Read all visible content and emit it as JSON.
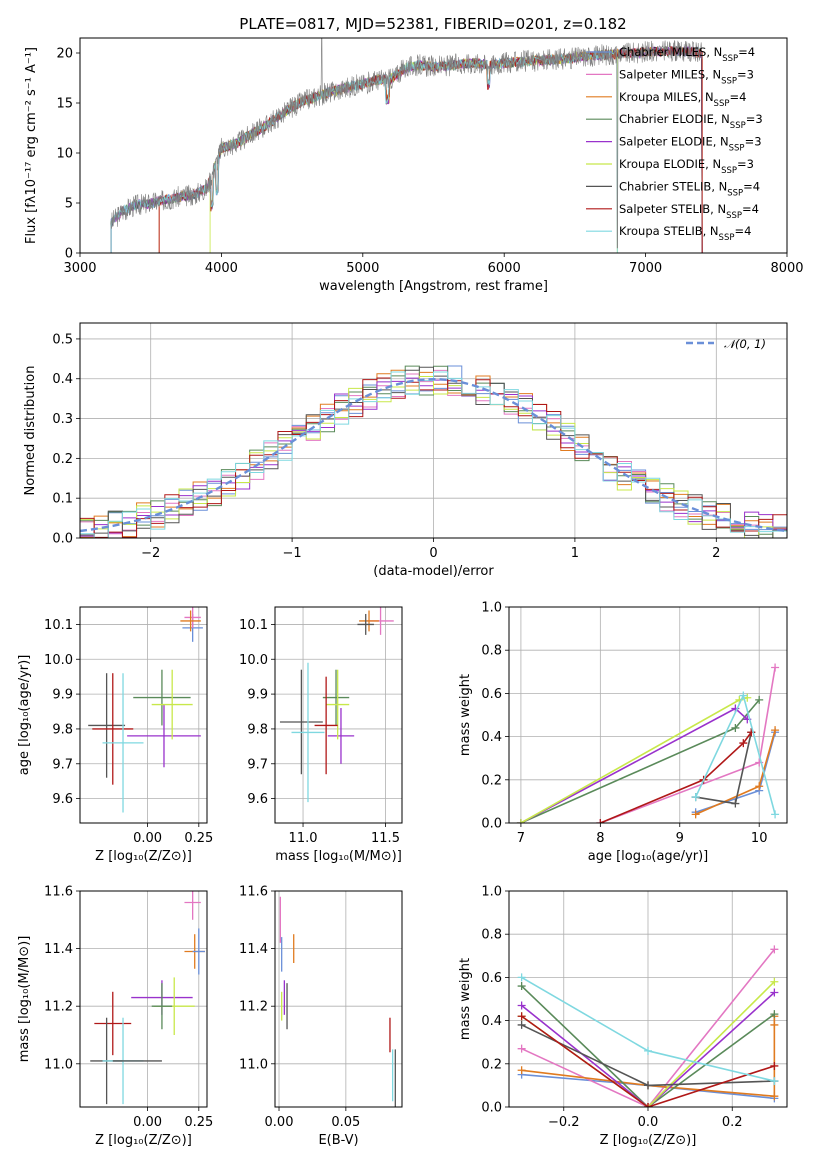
{
  "figure_title": "PLATE=0817, MJD=52381, FIBERID=0201, z=0.182",
  "colors": {
    "chabrier_miles": "#6a8fd8",
    "salpeter_miles": "#e377c2",
    "kroupa_miles": "#e07b20",
    "chabrier_elodie": "#5a8a5a",
    "salpeter_elodie": "#9932cc",
    "kroupa_elodie": "#c8e84a",
    "chabrier_stelib": "#555555",
    "salpeter_stelib": "#b01818",
    "kroupa_stelib": "#7fd8e0",
    "grid": "#b0b0b0"
  },
  "chart_data": [
    {
      "id": "spectrum",
      "type": "line",
      "title": "PLATE=0817, MJD=52381, FIBERID=0201, z=0.182",
      "xlabel": "wavelength [Angstrom, rest frame]",
      "ylabel": "Flux [fλ10⁻¹⁷ erg cm⁻² s⁻¹ A⁻¹]",
      "xlim": [
        3000,
        8000
      ],
      "ylim": [
        0,
        21.5
      ],
      "xticks": [
        3000,
        4000,
        5000,
        6000,
        7000,
        8000
      ],
      "yticks": [
        0,
        5,
        10,
        15,
        20
      ],
      "grid": false,
      "legend": "upper right",
      "legend_entries": [
        {
          "label": "Chabrier MILES, N",
          "sub": "SSP",
          "tail": "=4",
          "color": "#6a8fd8"
        },
        {
          "label": "Salpeter MILES, N",
          "sub": "SSP",
          "tail": "=3",
          "color": "#e377c2"
        },
        {
          "label": "Kroupa MILES, N",
          "sub": "SSP",
          "tail": "=4",
          "color": "#e07b20"
        },
        {
          "label": "Chabrier ELODIE, N",
          "sub": "SSP",
          "tail": "=3",
          "color": "#5a8a5a"
        },
        {
          "label": "Salpeter ELODIE, N",
          "sub": "SSP",
          "tail": "=3",
          "color": "#9932cc"
        },
        {
          "label": "Kroupa ELODIE, N",
          "sub": "SSP",
          "tail": "=3",
          "color": "#c8e84a"
        },
        {
          "label": "Chabrier STELIB, N",
          "sub": "SSP",
          "tail": "=4",
          "color": "#555555"
        },
        {
          "label": "Salpeter STELIB, N",
          "sub": "SSP",
          "tail": "=4",
          "color": "#b01818"
        },
        {
          "label": "Kroupa STELIB, N",
          "sub": "SSP",
          "tail": "=4",
          "color": "#7fd8e0"
        }
      ],
      "continuum": {
        "x": [
          3220,
          3300,
          3400,
          3500,
          3600,
          3700,
          3800,
          3900,
          3950,
          4000,
          4100,
          4200,
          4300,
          4400,
          4500,
          4600,
          4700,
          4800,
          4900,
          5000,
          5100,
          5200,
          5300,
          5400,
          5500,
          5600,
          5700,
          5800,
          5900,
          6000,
          6200,
          6400,
          6600,
          6800,
          7000,
          7200,
          7400
        ],
        "y": [
          3.0,
          4.2,
          4.8,
          5.0,
          5.3,
          5.6,
          5.8,
          6.5,
          8.5,
          10.5,
          10.9,
          11.8,
          12.6,
          13.6,
          14.6,
          15.3,
          15.8,
          16.2,
          16.6,
          16.9,
          17.3,
          17.4,
          18.5,
          18.8,
          18.6,
          18.7,
          18.9,
          19.0,
          18.8,
          19.0,
          19.2,
          19.4,
          19.7,
          19.9,
          20.1,
          20.2,
          20.0
        ]
      },
      "model_starts": [
        3220,
        3220,
        3560,
        3220,
        3220,
        3920,
        3220,
        3560,
        3220
      ],
      "model_ends": [
        7400,
        7400,
        7400,
        7400,
        7400,
        6800,
        7400,
        7400,
        6800
      ]
    },
    {
      "id": "residuals",
      "type": "histogram",
      "xlabel": "(data-model)/error",
      "ylabel": "Normed distribution",
      "xlim": [
        -2.5,
        2.5
      ],
      "ylim": [
        0,
        0.54
      ],
      "xticks": [
        -2,
        -1,
        0,
        1,
        2
      ],
      "yticks": [
        0.0,
        0.1,
        0.2,
        0.3,
        0.4,
        0.5
      ],
      "grid": true,
      "legend": "upper right",
      "legend_label": "𝒩(0, 1)",
      "gaussian_color": "#6a8fd8"
    },
    {
      "id": "age_vs_Z",
      "type": "errorbar",
      "xlabel": "Z [log₁₀(Z/Z⊙)]",
      "ylabel": "age  [log₁₀(age/yr)]",
      "xlim": [
        -0.33,
        0.29
      ],
      "ylim": [
        9.53,
        10.15
      ],
      "xticks": [
        0.0,
        0.25
      ],
      "xticklabels": [
        "0.00",
        "0.25"
      ],
      "yticks": [
        9.6,
        9.7,
        9.8,
        9.9,
        10.0,
        10.1
      ],
      "grid": true,
      "points": [
        {
          "x": 0.22,
          "y": 10.09,
          "xe": 0.05,
          "ye": 0.04,
          "color": "#6a8fd8"
        },
        {
          "x": 0.22,
          "y": 10.12,
          "xe": 0.04,
          "ye": 0.03,
          "color": "#e377c2"
        },
        {
          "x": 0.21,
          "y": 10.11,
          "xe": 0.05,
          "ye": 0.03,
          "color": "#e07b20"
        },
        {
          "x": 0.07,
          "y": 9.89,
          "xe": 0.14,
          "ye": 0.08,
          "color": "#5a8a5a"
        },
        {
          "x": 0.08,
          "y": 9.78,
          "xe": 0.18,
          "ye": 0.09,
          "color": "#9932cc"
        },
        {
          "x": 0.12,
          "y": 9.87,
          "xe": 0.1,
          "ye": 0.1,
          "color": "#c8e84a"
        },
        {
          "x": -0.2,
          "y": 9.81,
          "xe": 0.09,
          "ye": 0.15,
          "color": "#555555"
        },
        {
          "x": -0.17,
          "y": 9.8,
          "xe": 0.1,
          "ye": 0.16,
          "color": "#b01818"
        },
        {
          "x": -0.12,
          "y": 9.76,
          "xe": 0.1,
          "ye": 0.2,
          "color": "#7fd8e0"
        }
      ]
    },
    {
      "id": "age_vs_mass",
      "type": "errorbar",
      "xlabel": "mass [log₁₀(M/M⊙)]",
      "ylabel": "",
      "xlim": [
        10.83,
        11.6
      ],
      "ylim": [
        9.53,
        10.15
      ],
      "xticks": [
        11.0,
        11.5
      ],
      "xticklabels": [
        "11.0",
        "11.5"
      ],
      "yticks": [
        9.6,
        9.7,
        9.8,
        9.9,
        10.0,
        10.1
      ],
      "grid": true,
      "points": [
        {
          "x": 11.47,
          "y": 10.11,
          "xe": 0.08,
          "ye": 0.04,
          "color": "#e377c2"
        },
        {
          "x": 11.4,
          "y": 10.11,
          "xe": 0.06,
          "ye": 0.03,
          "color": "#e07b20"
        },
        {
          "x": 11.38,
          "y": 10.1,
          "xe": 0.05,
          "ye": 0.03,
          "color": "#555555"
        },
        {
          "x": 11.2,
          "y": 9.89,
          "xe": 0.08,
          "ye": 0.08,
          "color": "#5a8a5a"
        },
        {
          "x": 11.23,
          "y": 9.78,
          "xe": 0.08,
          "ye": 0.08,
          "color": "#9932cc"
        },
        {
          "x": 11.21,
          "y": 9.87,
          "xe": 0.07,
          "ye": 0.1,
          "color": "#c8e84a"
        },
        {
          "x": 10.99,
          "y": 9.82,
          "xe": 0.13,
          "ye": 0.15,
          "color": "#555555"
        },
        {
          "x": 11.14,
          "y": 9.81,
          "xe": 0.07,
          "ye": 0.14,
          "color": "#b01818"
        },
        {
          "x": 11.03,
          "y": 9.79,
          "xe": 0.1,
          "ye": 0.2,
          "color": "#7fd8e0"
        }
      ]
    },
    {
      "id": "mass_weight_vs_age",
      "type": "line",
      "xlabel": "age  [log₁₀(age/yr)]",
      "ylabel": "mass weight",
      "xlim": [
        6.85,
        10.35
      ],
      "ylim": [
        0,
        1.0
      ],
      "xticks": [
        7,
        8,
        9,
        10
      ],
      "yticks": [
        0.0,
        0.2,
        0.4,
        0.6,
        0.8,
        1.0
      ],
      "grid": true,
      "series": [
        {
          "color": "#6a8fd8",
          "x": [
            9.2,
            10.0,
            10.2
          ],
          "y": [
            0.05,
            0.15,
            0.42
          ]
        },
        {
          "color": "#e377c2",
          "x": [
            8.0,
            10.0,
            10.2
          ],
          "y": [
            0.0,
            0.28,
            0.72
          ]
        },
        {
          "color": "#e07b20",
          "x": [
            9.2,
            10.0,
            10.2
          ],
          "y": [
            0.04,
            0.17,
            0.43
          ]
        },
        {
          "color": "#5a8a5a",
          "x": [
            7.0,
            9.7,
            10.0
          ],
          "y": [
            0.0,
            0.44,
            0.57
          ]
        },
        {
          "color": "#9932cc",
          "x": [
            7.0,
            9.7,
            9.85
          ],
          "y": [
            0.0,
            0.53,
            0.48
          ]
        },
        {
          "color": "#c8e84a",
          "x": [
            7.0,
            9.75,
            9.85
          ],
          "y": [
            0.0,
            0.57,
            0.58
          ]
        },
        {
          "color": "#555555",
          "x": [
            9.2,
            9.7,
            9.9
          ],
          "y": [
            0.12,
            0.09,
            0.42
          ]
        },
        {
          "color": "#b01818",
          "x": [
            8.0,
            9.3,
            9.8,
            9.9
          ],
          "y": [
            0.0,
            0.2,
            0.37,
            0.42
          ]
        },
        {
          "color": "#7fd8e0",
          "x": [
            9.2,
            9.8,
            10.2
          ],
          "y": [
            0.12,
            0.59,
            0.04
          ]
        }
      ]
    },
    {
      "id": "mass_vs_Z",
      "type": "errorbar",
      "xlabel": "Z [log₁₀(Z/Z⊙)]",
      "ylabel": "mass [log₁₀(M/M⊙)]",
      "xlim": [
        -0.33,
        0.29
      ],
      "ylim": [
        10.85,
        11.6
      ],
      "xticks": [
        0.0,
        0.25
      ],
      "xticklabels": [
        "0.00",
        "0.25"
      ],
      "yticks": [
        11.0,
        11.2,
        11.4,
        11.6
      ],
      "grid": true,
      "points": [
        {
          "x": 0.22,
          "y": 11.56,
          "xe": 0.04,
          "ye": 0.06,
          "color": "#e377c2"
        },
        {
          "x": 0.23,
          "y": 11.39,
          "xe": 0.05,
          "ye": 0.06,
          "color": "#e07b20"
        },
        {
          "x": 0.25,
          "y": 11.39,
          "xe": 0.03,
          "ye": 0.08,
          "color": "#6a8fd8"
        },
        {
          "x": 0.07,
          "y": 11.23,
          "xe": 0.15,
          "ye": 0.06,
          "color": "#9932cc"
        },
        {
          "x": 0.13,
          "y": 11.2,
          "xe": 0.1,
          "ye": 0.1,
          "color": "#c8e84a"
        },
        {
          "x": 0.07,
          "y": 11.2,
          "xe": 0.05,
          "ye": 0.08,
          "color": "#5a8a5a"
        },
        {
          "x": -0.17,
          "y": 11.14,
          "xe": 0.09,
          "ye": 0.11,
          "color": "#b01818"
        },
        {
          "x": -0.2,
          "y": 11.01,
          "xe": 0.08,
          "ye": 0.15,
          "color": "#555555"
        },
        {
          "x": -0.12,
          "y": 11.01,
          "xe": 0.1,
          "ye": 0.15,
          "color": "#7fd8e0"
        },
        {
          "x": -0.05,
          "y": 11.01,
          "xe": 0.12,
          "ye": 0.0,
          "color": "#555555"
        }
      ]
    },
    {
      "id": "mass_vs_EBV",
      "type": "errorbar",
      "xlabel": "E(B-V)",
      "ylabel": "",
      "xlim": [
        -0.003,
        0.092
      ],
      "ylim": [
        10.85,
        11.6
      ],
      "xticks": [
        0.0,
        0.05
      ],
      "xticklabels": [
        "0.00",
        "0.05"
      ],
      "yticks": [
        11.0,
        11.2,
        11.4,
        11.6
      ],
      "grid": true,
      "points": [
        {
          "x": 0.001,
          "y": 11.5,
          "xe": 0,
          "ye": 0.08,
          "color": "#e377c2"
        },
        {
          "x": 0.002,
          "y": 11.38,
          "xe": 0,
          "ye": 0.06,
          "color": "#6a8fd8"
        },
        {
          "x": 0.002,
          "y": 11.2,
          "xe": 0,
          "ye": 0.05,
          "color": "#c8e84a"
        },
        {
          "x": 0.004,
          "y": 11.23,
          "xe": 0,
          "ye": 0.06,
          "color": "#9932cc"
        },
        {
          "x": 0.006,
          "y": 11.2,
          "xe": 0,
          "ye": 0.08,
          "color": "#555555"
        },
        {
          "x": 0.011,
          "y": 11.4,
          "xe": 0,
          "ye": 0.05,
          "color": "#e07b20"
        },
        {
          "x": 0.083,
          "y": 11.1,
          "xe": 0,
          "ye": 0.06,
          "color": "#b01818"
        },
        {
          "x": 0.085,
          "y": 10.96,
          "xe": 0,
          "ye": 0.09,
          "color": "#7fd8e0"
        },
        {
          "x": 0.087,
          "y": 10.95,
          "xe": 0,
          "ye": 0.1,
          "color": "#555555"
        }
      ]
    },
    {
      "id": "mass_weight_vs_Z",
      "type": "line",
      "xlabel": "Z [log₁₀(Z/Z⊙)]",
      "ylabel": "mass weight",
      "xlim": [
        -0.33,
        0.33
      ],
      "ylim": [
        0,
        1.0
      ],
      "xticks": [
        -0.2,
        0.0,
        0.2
      ],
      "xticklabels": [
        "−0.2",
        "0.0",
        "0.2"
      ],
      "yticks": [
        0.0,
        0.2,
        0.4,
        0.6,
        0.8,
        1.0
      ],
      "grid": true,
      "series": [
        {
          "color": "#6a8fd8",
          "x": [
            -0.3,
            0.0,
            0.3
          ],
          "y": [
            0.15,
            0.1,
            0.04
          ]
        },
        {
          "color": "#e377c2",
          "x": [
            -0.3,
            0.0,
            0.3
          ],
          "y": [
            0.27,
            0.0,
            0.73
          ]
        },
        {
          "color": "#e07b20",
          "x": [
            -0.3,
            0.0,
            0.3,
            0.3,
            0.3
          ],
          "y": [
            0.17,
            0.1,
            0.05,
            0.38,
            0.42
          ]
        },
        {
          "color": "#5a8a5a",
          "x": [
            -0.3,
            0.0,
            0.3
          ],
          "y": [
            0.56,
            0.0,
            0.43
          ]
        },
        {
          "color": "#9932cc",
          "x": [
            -0.3,
            0.0,
            0.3
          ],
          "y": [
            0.47,
            0.0,
            0.53
          ]
        },
        {
          "color": "#c8e84a",
          "x": [
            -0.3,
            0.0,
            0.3
          ],
          "y": [
            0.42,
            0.0,
            0.58
          ]
        },
        {
          "color": "#555555",
          "x": [
            -0.3,
            0.0,
            0.3
          ],
          "y": [
            0.38,
            0.1,
            0.12
          ]
        },
        {
          "color": "#b01818",
          "x": [
            -0.3,
            0.0,
            0.3
          ],
          "y": [
            0.42,
            0.0,
            0.19
          ]
        },
        {
          "color": "#7fd8e0",
          "x": [
            -0.3,
            0.0,
            0.3
          ],
          "y": [
            0.6,
            0.26,
            0.12
          ]
        }
      ]
    }
  ]
}
